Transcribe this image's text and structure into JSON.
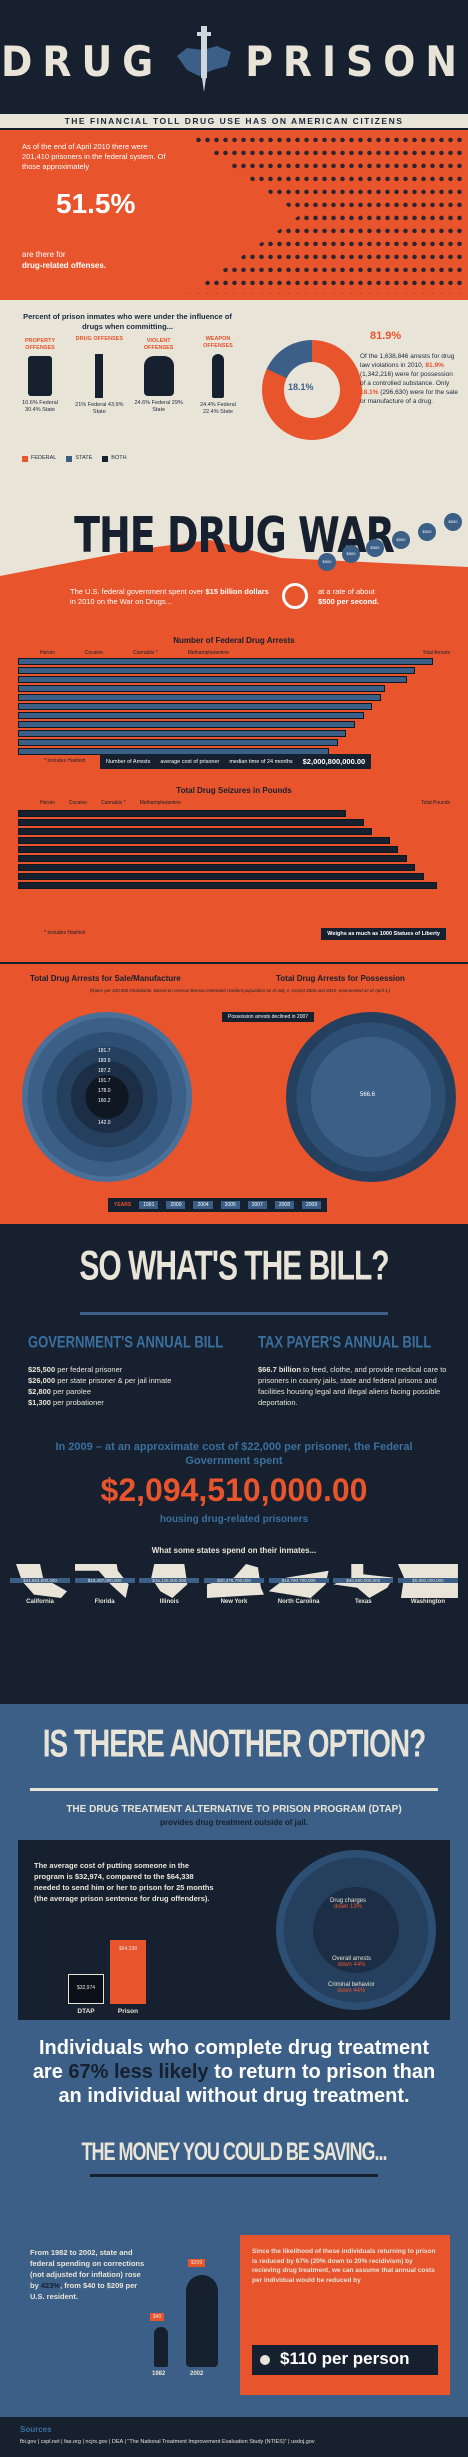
{
  "header": {
    "word_left": "DRUG",
    "word_right": "PRISON",
    "subtitle": "THE FINANCIAL TOLL DRUG USE HAS ON AMERICAN CITIZENS"
  },
  "inmates": {
    "intro": "As of the end of April 2010 there were 201,410 prisoners in the federal system. Of those approximately",
    "percent": "51.5%",
    "outro_1": "are there for",
    "outro_2": "drug-related offenses."
  },
  "influence": {
    "title": "Percent of prison inmates who were under the influence of drugs when committing...",
    "items": [
      {
        "label": "PROPERTY OFFENSES",
        "stat": "10.6% Federal 30.4% State",
        "icon": "jerrycan-icon"
      },
      {
        "label": "DRUG OFFENSES",
        "stat": "21% Federal 43.9% State",
        "icon": "syringe-icon"
      },
      {
        "label": "VIOLENT OFFENSES",
        "stat": "24.6% Federal 29% State",
        "icon": "fist-icon"
      },
      {
        "label": "WEAPON OFFENSES",
        "stat": "24.4% Federal 22.4% State",
        "icon": "knife-icon"
      }
    ],
    "legend": [
      "FEDERAL",
      "STATE",
      "BOTH"
    ]
  },
  "arrests_donut": {
    "outer_pct": "81.9%",
    "inner_pct": "18.1%",
    "text_1": "Of the 1,638,846 arrests for drug law violations in 2010,",
    "highlight_1": "81.9%",
    "text_2": "(1,342,216) were for possession of a controlled substance. Only",
    "highlight_2": "18.1%",
    "text_3": "(296,630) were for the sale or manufacture of a drug."
  },
  "drugwar": {
    "title": "THE DRUG WAR",
    "spent_1": "The U.S. federal government spent over",
    "spent_2": "$15 billion dollars",
    "spent_3": "in 2010 on the War on Drugs...",
    "rate_1": "at a rate of about",
    "rate_2": "$500 per second.",
    "coins": [
      "$500",
      "$500",
      "$500",
      "$500",
      "$500",
      "$500"
    ]
  },
  "arrests_chart": {
    "title": "Number of Federal Drug Arrests",
    "legend": [
      "Heroin",
      "Cocaine",
      "Cannabis *",
      "Methamphetamine"
    ],
    "total_header": "Total Arrests",
    "footnote": "* Includes Hashish",
    "summary_1": "Number of Arrests",
    "summary_2": "average cost of prisoner",
    "summary_3": "median time of 24 months",
    "summary_total": "$2,000,800,000.00"
  },
  "seizure_chart": {
    "title": "Total Drug Seizures in Pounds",
    "legend": [
      "Heroin",
      "Cocaine",
      "Cannabis *",
      "Methamphetamine"
    ],
    "total_header": "Total Pounds",
    "footnote": "* Includes Hashish",
    "weight_note": "Weighs as much as 1000 Statues of Liberty"
  },
  "circles": {
    "left_title": "Total Drug Arrests for Sale/Manufacture",
    "right_title": "Total Drug Arrests for Possession",
    "note": "(Rates per 100,000 inhabitants. Based on Census Bureau estimated resident population as of July 1, except 2000 and 2010, enumerated as of April 1.)",
    "right_banner": "Possession arrests declined in 2007",
    "left_rings": [
      "181.7",
      "183.5",
      "187.2",
      "191.7",
      "178.0",
      "160.2",
      "142.0"
    ],
    "right_center": "566.6",
    "years_label": "YEARS",
    "years": [
      "1991",
      "2000",
      "2004",
      "2005",
      "2007",
      "2008",
      "2009"
    ]
  },
  "bill": {
    "title": "SO WHAT'S THE BILL?",
    "gov_title": "GOVERNMENT'S ANNUAL BILL",
    "gov_items": [
      {
        "amount": "$25,500",
        "text": "per federal prisoner"
      },
      {
        "amount": "$26,000",
        "text": "per state prisoner & per jail inmate"
      },
      {
        "amount": "$2,800",
        "text": "per parolee"
      },
      {
        "amount": "$1,300",
        "text": "per probationer"
      }
    ],
    "tax_title": "TAX PAYER'S ANNUAL BILL",
    "tax_amount": "$66.7 billion",
    "tax_text": "to feed, clothe, and provide medical care to prisoners in county jails, state and federal prisons and facilities housing legal and illegal aliens facing possible deportation.",
    "fed_line": "In 2009 – at an approximate cost of $22,000 per prisoner, the Federal Government spent",
    "fed_total": "$2,094,510,000.00",
    "fed_caption": "housing drug-related prisoners",
    "states_title": "What some states spend on their inmates...",
    "states": [
      {
        "name": "California",
        "amount": "$44,563,000,000"
      },
      {
        "name": "Florida",
        "amount": "$10,407,000,000"
      },
      {
        "name": "Illinois",
        "amount": "$16,126,000,000"
      },
      {
        "name": "New York",
        "amount": "$20,276,700,000"
      },
      {
        "name": "North Carolina",
        "amount": "$10,700,700,000"
      },
      {
        "name": "Texas",
        "amount": "$40,600,000,000"
      },
      {
        "name": "Washington",
        "amount": "$5,800,000,000"
      }
    ]
  },
  "option": {
    "title": "IS THERE ANOTHER OPTION?",
    "dtap_title": "THE DRUG TREATMENT ALTERNATIVE TO PRISON PROGRAM (DTAP)",
    "dtap_sub": "provides drug treatment outside of jail.",
    "cost_text_1": "The average cost of putting someone in the program is",
    "cost_a": "$32,974",
    "cost_text_2": ", compared to the",
    "cost_b": "$64,338",
    "cost_text_3": "needed to send him or her to prison for 25 months (the average prison sentence for drug offenders).",
    "bar_dtap_value": "$32,974",
    "bar_prison_value": "$64,338",
    "bar_dtap_label": "DTAP",
    "bar_prison_label": "Prison",
    "rings": [
      {
        "label": "Drug charges",
        "value": "down 13%"
      },
      {
        "label": "Overall arrests",
        "value": "down 44%"
      },
      {
        "label": "Criminal behavior",
        "value": "down 44%"
      }
    ],
    "likely_1": "Individuals who complete drug treatment are",
    "likely_hl": "67% less likely",
    "likely_2": "to return to prison than an individual without drug treatment."
  },
  "saving": {
    "title": "THE MONEY YOU COULD BE SAVING...",
    "left_1": "From 1982 to 2002, state and federal spending on corrections (not adjusted for inflation) rose by",
    "left_hl": "423%",
    "left_2": ", from $40 to $209 per U.S. resident.",
    "fig_small": "$40",
    "fig_big": "$209",
    "year_a": "1982",
    "year_b": "2002",
    "right_text": "Since the likelihood of these individuals returning to prison is reduced by 67% (20% down to 20% recidivism) by recieving drug treatment, we can assume that annual costs per individual would be reduced by",
    "right_amount": "$110 per person"
  },
  "sources": {
    "title": "Sources",
    "text": "fbi.gov | cspl.net | fas.org | ncjrs.gov | DEA | \"The National Treatment Improvement Evaluation Study (NTIES)\" | usdoj.gov"
  },
  "colors": {
    "navy": "#16202f",
    "red": "#e8542c",
    "blue": "#3b5f86",
    "cream": "#e9e4d8"
  }
}
